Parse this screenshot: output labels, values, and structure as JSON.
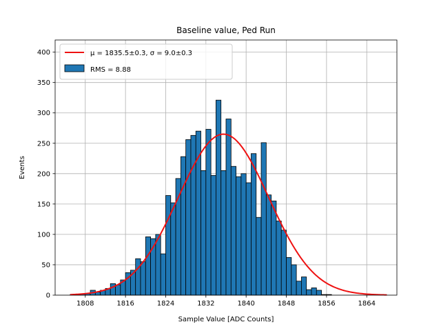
{
  "chart_data": {
    "type": "bar",
    "title": "Baseline value, Ped Run",
    "xlabel": "Sample Value [ADC Counts]",
    "ylabel": "Events",
    "xlim": [
      1802,
      1870
    ],
    "ylim": [
      0,
      420
    ],
    "xticks": [
      1808,
      1816,
      1824,
      1832,
      1840,
      1848,
      1856,
      1864
    ],
    "yticks": [
      0,
      50,
      100,
      150,
      200,
      250,
      300,
      350,
      400
    ],
    "grid": true,
    "legend_position": "top-left",
    "bin_width": 1,
    "bins_start": 1805,
    "values": [
      1,
      1,
      2,
      3,
      8,
      5,
      8,
      11,
      19,
      17,
      25,
      37,
      41,
      60,
      55,
      96,
      93,
      100,
      68,
      164,
      152,
      192,
      228,
      256,
      263,
      270,
      205,
      273,
      197,
      321,
      205,
      290,
      212,
      195,
      200,
      185,
      233,
      128,
      251,
      165,
      155,
      122,
      107,
      62,
      50,
      23,
      30,
      9,
      12,
      8,
      1,
      1,
      0
    ],
    "series": [
      {
        "name": "RMS = 8.88",
        "kind": "histogram",
        "color": "#1f77b4",
        "edge_color": "#000000"
      },
      {
        "name": "μ = 1835.5±0.3, σ = 9.0±0.3",
        "kind": "gaussian-fit",
        "color": "#ee1111",
        "mu": 1835.5,
        "sigma": 9.0,
        "amplitude": 265,
        "x_range": [
          1805,
          1868
        ]
      }
    ]
  }
}
